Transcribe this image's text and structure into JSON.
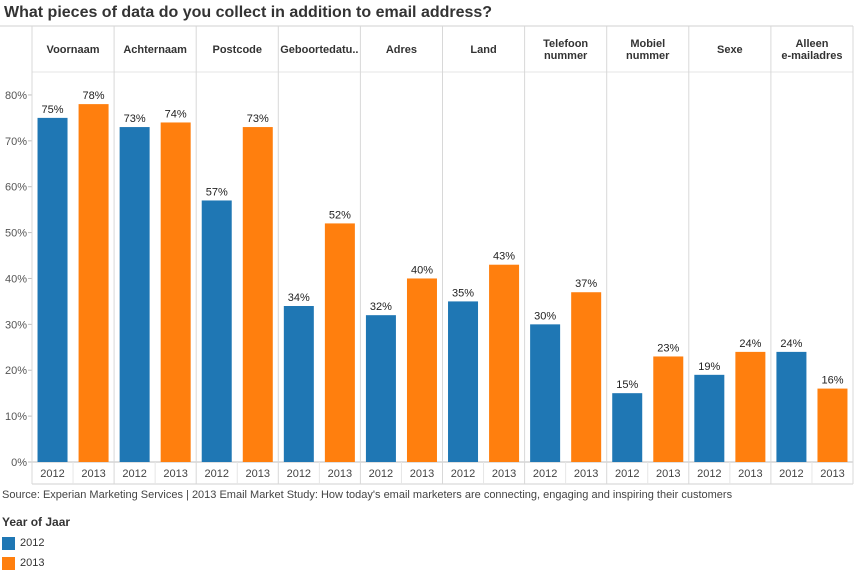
{
  "title": "What pieces of data do you collect in addition to email address?",
  "source": "Source: Experian Marketing Services  | 2013 Email Market Study: How today's email marketers are connecting, engaging and inspiring their customers",
  "legend": {
    "title": "Year of Jaar",
    "items": [
      {
        "label": "2012",
        "color": "#1f77b4"
      },
      {
        "label": "2013",
        "color": "#ff7f0e"
      }
    ]
  },
  "chart_data": {
    "type": "bar",
    "title": "What pieces of data do you collect in addition to email address?",
    "categories": [
      [
        "Voornaam"
      ],
      [
        "Achternaam"
      ],
      [
        "Postcode"
      ],
      [
        "Geboortedatu.."
      ],
      [
        "Adres"
      ],
      [
        "Land"
      ],
      [
        "Telefoon",
        "nummer"
      ],
      [
        "Mobiel",
        "nummer"
      ],
      [
        "Sexe"
      ],
      [
        "Alleen",
        "e-mailadres"
      ]
    ],
    "x_labels": [
      "2012",
      "2013"
    ],
    "series": [
      {
        "name": "2012",
        "color": "#1f77b4",
        "values": [
          75,
          73,
          57,
          34,
          32,
          35,
          30,
          15,
          19,
          24
        ]
      },
      {
        "name": "2013",
        "color": "#ff7f0e",
        "values": [
          78,
          74,
          73,
          52,
          40,
          43,
          37,
          23,
          24,
          16
        ]
      }
    ],
    "value_suffix": "%",
    "y_ticks": [
      "0%",
      "10%",
      "20%",
      "30%",
      "40%",
      "50%",
      "60%",
      "70%",
      "80%"
    ],
    "ylim": [
      0,
      85
    ],
    "grid": false,
    "legend_position": "bottom-left"
  }
}
